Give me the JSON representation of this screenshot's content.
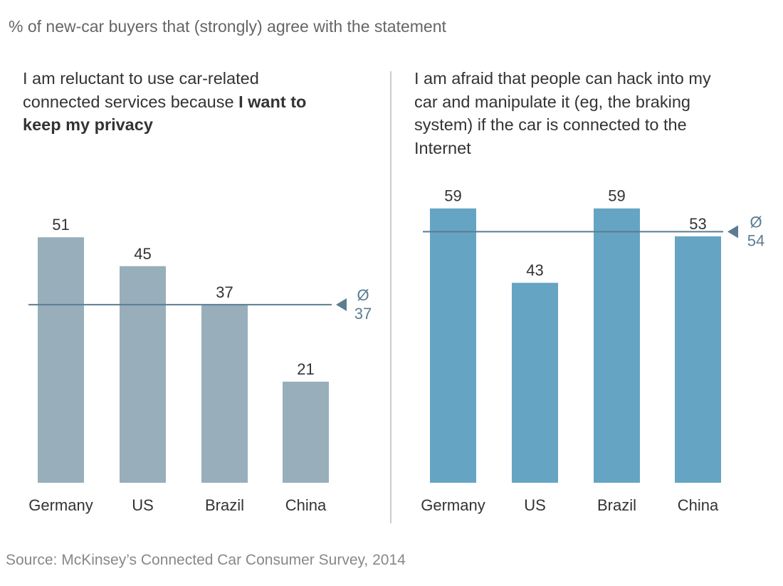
{
  "subtitle": "% of new-car buyers that (strongly) agree with the statement",
  "source": "Source: McKinsey’s Connected Car Consumer Survey, 2014",
  "panels": [
    {
      "title_plain": "I am reluctant to use car-related connected services because ",
      "title_bold": "I want to keep my privacy"
    },
    {
      "title_plain": "I am afraid that people can hack into my car and manipulate it (eg, the braking system) if the car is connected to the Internet",
      "title_bold": ""
    }
  ],
  "chart_data": [
    {
      "type": "bar",
      "title": "I am reluctant to use car-related connected services because I want to keep my privacy",
      "categories": [
        "Germany",
        "US",
        "Brazil",
        "China"
      ],
      "values": [
        51,
        45,
        37,
        21
      ],
      "average": {
        "symbol": "Ø",
        "value": 37
      },
      "color": "#98aeba"
    },
    {
      "type": "bar",
      "title": "I am afraid that people can hack into my car and manipulate it (eg, the braking system) if the car is connected to the Internet",
      "categories": [
        "Germany",
        "US",
        "Brazil",
        "China"
      ],
      "values": [
        59,
        43,
        59,
        53
      ],
      "average": {
        "symbol": "Ø",
        "value": 54
      },
      "color": "#66a4c4"
    }
  ],
  "avg_line_color": "#5b7d92"
}
